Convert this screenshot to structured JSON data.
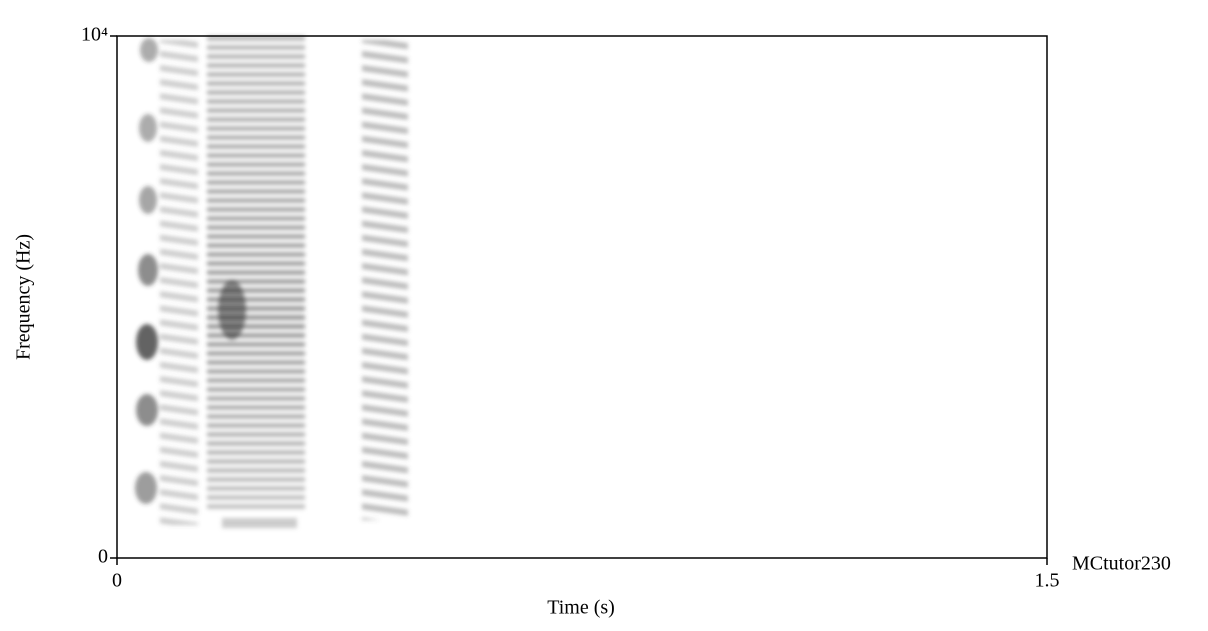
{
  "chart_data": {
    "type": "spectrogram",
    "x_label": "Time (s)",
    "y_label": "Frequency (Hz)",
    "annotation": "MCtutor230",
    "xlim": [
      0,
      1.5
    ],
    "xticks": [
      0,
      1.5
    ],
    "ylim": [
      0,
      10000
    ],
    "yticks": [
      0,
      {
        "value": 10000,
        "label": "10⁴"
      }
    ]
  }
}
